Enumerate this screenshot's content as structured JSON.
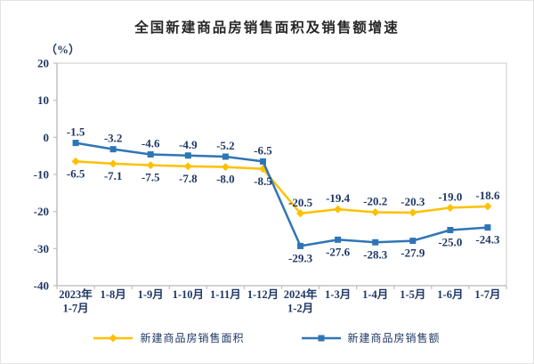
{
  "title": "全国新建商品房销售面积及销售额增速",
  "y_unit_label": "（%）",
  "chart_data": {
    "type": "line",
    "title": "全国新建商品房销售面积及销售额增速",
    "ylabel": "（%）",
    "ylim": [
      -40,
      20
    ],
    "yticks": [
      20,
      10,
      0,
      -10,
      -20,
      -30,
      -40
    ],
    "grid": false,
    "legend_position": "bottom",
    "categories": [
      "2023年\n1-7月",
      "1-8月",
      "1-9月",
      "1-10月",
      "1-11月",
      "1-12月",
      "2024年\n1-2月",
      "1-3月",
      "1-4月",
      "1-5月",
      "1-6月",
      "1-7月"
    ],
    "series": [
      {
        "name": "新建商品房销售面积",
        "color": "#FFC000",
        "marker": "diamond",
        "values": [
          -6.5,
          -7.1,
          -7.5,
          -7.8,
          -8.0,
          -8.5,
          -20.5,
          -19.4,
          -20.2,
          -20.3,
          -19.0,
          -18.6
        ]
      },
      {
        "name": "新建商品房销售额",
        "color": "#2E75B6",
        "marker": "square",
        "values": [
          -1.5,
          -3.2,
          -4.6,
          -4.9,
          -5.2,
          -6.5,
          -29.3,
          -27.6,
          -28.3,
          -27.9,
          -25.0,
          -24.3
        ]
      }
    ]
  },
  "colors": {
    "plot_border": "#D9D9D9",
    "axis_line": "#BFBFBF",
    "data_label": "#1F3864",
    "axis_label": "#1F3864",
    "title_text": "#262626"
  }
}
